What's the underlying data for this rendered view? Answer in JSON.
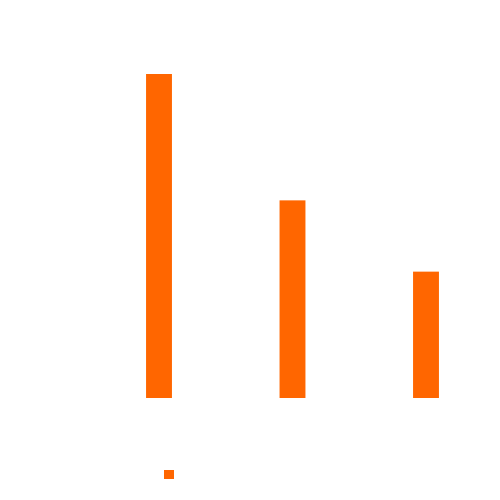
{
  "chart_data": {
    "type": "bar",
    "categories": [
      null,
      null,
      null
    ],
    "values": [
      100,
      61,
      39
    ],
    "color": "#ff6600",
    "ylim": [
      0,
      100
    ],
    "legend": true
  }
}
